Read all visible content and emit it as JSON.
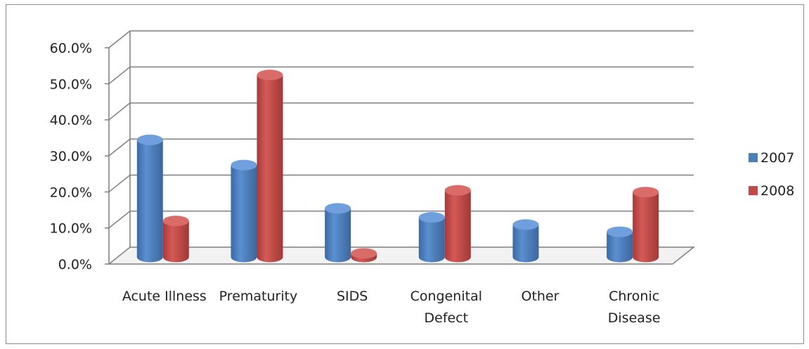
{
  "chart_data": {
    "type": "bar",
    "categories": [
      [
        "Acute Illness"
      ],
      [
        "Prematurity"
      ],
      [
        "SIDS"
      ],
      [
        "Congenital",
        "Defect"
      ],
      [
        "Other"
      ],
      [
        "Chronic",
        "Disease"
      ]
    ],
    "series": [
      {
        "name": "2007",
        "color": "#4a7ebb",
        "values": [
          32.5,
          25.5,
          13.5,
          11.0,
          9.0,
          7.0
        ]
      },
      {
        "name": "2008",
        "color": "#be4b48",
        "values": [
          10.0,
          50.5,
          1.0,
          18.5,
          0.0,
          18.0
        ]
      }
    ],
    "ylim": [
      0,
      60
    ],
    "yticks": [
      "0.0%",
      "10.0%",
      "20.0%",
      "30.0%",
      "40.0%",
      "50.0%",
      "60.0%"
    ],
    "grid": true,
    "legend_position": "right"
  }
}
